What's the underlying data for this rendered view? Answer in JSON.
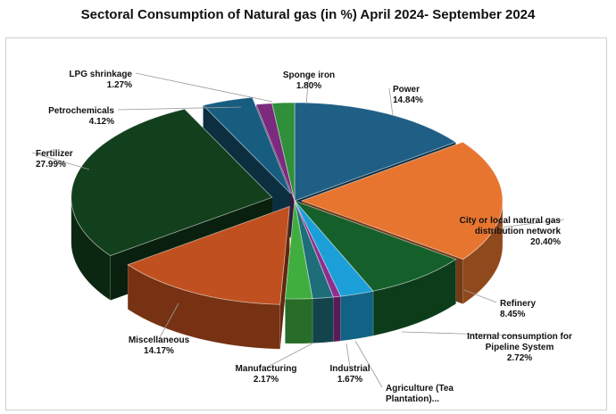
{
  "chart_data": {
    "type": "pie",
    "title": "Sectoral Consumption of Natural gas (in %) April 2024- September 2024",
    "slices": [
      {
        "label": "Power",
        "value": 14.84,
        "value_label": "14.84%",
        "color": "#1f5f86"
      },
      {
        "label": "City or local natural gas distribution network",
        "value": 20.4,
        "value_label": "20.40%",
        "color": "#e8752f"
      },
      {
        "label": "Refinery",
        "value": 8.45,
        "value_label": "8.45%",
        "color": "#15602a"
      },
      {
        "label": "Internal consumption for Pipeline System",
        "value": 2.72,
        "value_label": "2.72%",
        "color": "#1c9fd8"
      },
      {
        "label": "Agriculture (Tea Plantation)...",
        "value": 0.6,
        "value_label": "",
        "color": "#8e2f8f"
      },
      {
        "label": "Industrial",
        "value": 1.67,
        "value_label": "1.67%",
        "color": "#1e6e7a"
      },
      {
        "label": "Manufacturing",
        "value": 2.17,
        "value_label": "2.17%",
        "color": "#3fae3f"
      },
      {
        "label": "Miscellaneous",
        "value": 14.17,
        "value_label": "14.17%",
        "color": "#c0501f"
      },
      {
        "label": "Fertilizer",
        "value": 27.99,
        "value_label": "27.99%",
        "color": "#123f1c"
      },
      {
        "label": "Petrochemicals",
        "value": 4.12,
        "value_label": "4.12%",
        "color": "#175d80"
      },
      {
        "label": "LPG shrinkage",
        "value": 1.27,
        "value_label": "1.27%",
        "color": "#7b2b7d"
      },
      {
        "label": "Sponge iron",
        "value": 1.8,
        "value_label": "1.80%",
        "color": "#2f8f3a"
      }
    ],
    "legend": "none",
    "style": "3d-exploded"
  }
}
